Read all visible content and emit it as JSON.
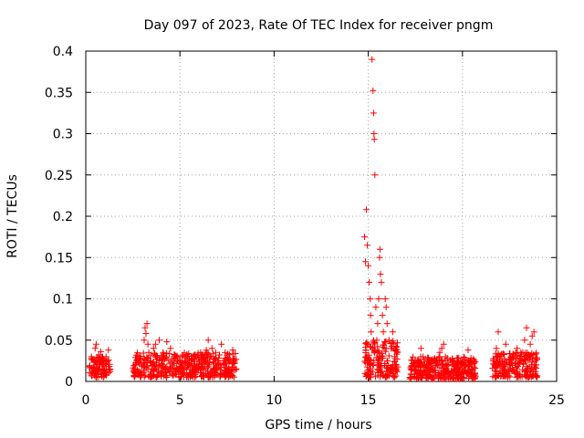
{
  "chart_data": {
    "type": "scatter",
    "title": "Day 097 of 2023, Rate Of TEC Index for receiver pngm",
    "xlabel": "GPS time / hours",
    "ylabel": "ROTI / TECUs",
    "xlim": [
      0,
      25
    ],
    "ylim": [
      0,
      0.4
    ],
    "xticks": [
      0,
      5,
      10,
      15,
      20,
      25
    ],
    "xtick_labels": [
      "0",
      "5",
      "10",
      "15",
      "20",
      "25"
    ],
    "yticks": [
      0,
      0.05,
      0.1,
      0.15,
      0.2,
      0.25,
      0.3,
      0.35,
      0.4
    ],
    "ytick_labels": [
      "0",
      "0.05",
      "0.1",
      "0.15",
      "0.2",
      "0.25",
      "0.3",
      "0.35",
      "0.4"
    ],
    "grid": true,
    "marker": "+",
    "colors": {
      "points": "#ff0000",
      "grid": "#a0a0a0",
      "axis": "#000000"
    },
    "series": [
      {
        "name": "ROTI",
        "points": [
          [
            0.2,
            0.018
          ],
          [
            0.3,
            0.03
          ],
          [
            0.35,
            0.012
          ],
          [
            0.45,
            0.026
          ],
          [
            0.5,
            0.04
          ],
          [
            0.55,
            0.045
          ],
          [
            0.6,
            0.022
          ],
          [
            0.65,
            0.015
          ],
          [
            0.7,
            0.032
          ],
          [
            0.75,
            0.02
          ],
          [
            0.8,
            0.036
          ],
          [
            0.85,
            0.01
          ],
          [
            0.9,
            0.028
          ],
          [
            1.0,
            0.015
          ],
          [
            1.1,
            0.024
          ],
          [
            1.2,
            0.038
          ],
          [
            1.25,
            0.018
          ],
          [
            1.3,
            0.012
          ],
          [
            2.6,
            0.015
          ],
          [
            2.7,
            0.025
          ],
          [
            2.8,
            0.01
          ],
          [
            2.9,
            0.03
          ],
          [
            3.0,
            0.02
          ],
          [
            3.1,
            0.05
          ],
          [
            3.15,
            0.065
          ],
          [
            3.2,
            0.058
          ],
          [
            3.25,
            0.07
          ],
          [
            3.3,
            0.045
          ],
          [
            3.35,
            0.035
          ],
          [
            3.4,
            0.025
          ],
          [
            3.5,
            0.015
          ],
          [
            3.6,
            0.04
          ],
          [
            3.7,
            0.045
          ],
          [
            3.8,
            0.03
          ],
          [
            3.9,
            0.05
          ],
          [
            4.0,
            0.02
          ],
          [
            4.1,
            0.035
          ],
          [
            4.2,
            0.015
          ],
          [
            4.3,
            0.048
          ],
          [
            4.4,
            0.025
          ],
          [
            4.5,
            0.04
          ],
          [
            4.6,
            0.02
          ],
          [
            4.7,
            0.03
          ],
          [
            4.8,
            0.012
          ],
          [
            4.9,
            0.025
          ],
          [
            5.0,
            0.018
          ],
          [
            5.1,
            0.03
          ],
          [
            5.2,
            0.015
          ],
          [
            5.3,
            0.022
          ],
          [
            5.4,
            0.028
          ],
          [
            5.5,
            0.02
          ],
          [
            5.6,
            0.026
          ],
          [
            5.7,
            0.012
          ],
          [
            5.8,
            0.03
          ],
          [
            5.9,
            0.018
          ],
          [
            6.0,
            0.024
          ],
          [
            6.1,
            0.035
          ],
          [
            6.2,
            0.02
          ],
          [
            6.3,
            0.028
          ],
          [
            6.4,
            0.038
          ],
          [
            6.5,
            0.05
          ],
          [
            6.6,
            0.03
          ],
          [
            6.7,
            0.04
          ],
          [
            6.8,
            0.022
          ],
          [
            6.9,
            0.035
          ],
          [
            7.0,
            0.025
          ],
          [
            7.1,
            0.032
          ],
          [
            7.2,
            0.045
          ],
          [
            7.3,
            0.02
          ],
          [
            7.4,
            0.028
          ],
          [
            7.5,
            0.015
          ],
          [
            7.6,
            0.022
          ],
          [
            7.7,
            0.012
          ],
          [
            7.8,
            0.038
          ],
          [
            7.9,
            0.025
          ],
          [
            8.0,
            0.015
          ],
          [
            14.8,
            0.175
          ],
          [
            14.85,
            0.145
          ],
          [
            14.9,
            0.208
          ],
          [
            14.95,
            0.165
          ],
          [
            15.0,
            0.14
          ],
          [
            15.05,
            0.12
          ],
          [
            15.1,
            0.1
          ],
          [
            15.12,
            0.08
          ],
          [
            15.15,
            0.06
          ],
          [
            15.2,
            0.39
          ],
          [
            15.25,
            0.352
          ],
          [
            15.28,
            0.325
          ],
          [
            15.3,
            0.3
          ],
          [
            15.32,
            0.293
          ],
          [
            15.35,
            0.25
          ],
          [
            15.4,
            0.09
          ],
          [
            15.45,
            0.05
          ],
          [
            15.5,
            0.07
          ],
          [
            15.55,
            0.1
          ],
          [
            15.6,
            0.15
          ],
          [
            15.62,
            0.16
          ],
          [
            15.65,
            0.13
          ],
          [
            15.7,
            0.12
          ],
          [
            15.75,
            0.08
          ],
          [
            15.8,
            0.06
          ],
          [
            15.85,
            0.04
          ],
          [
            15.9,
            0.1
          ],
          [
            15.95,
            0.09
          ],
          [
            16.0,
            0.07
          ],
          [
            16.1,
            0.05
          ],
          [
            16.2,
            0.04
          ],
          [
            16.3,
            0.06
          ],
          [
            16.4,
            0.03
          ],
          [
            16.5,
            0.02
          ],
          [
            14.9,
            0.03
          ],
          [
            15.0,
            0.045
          ],
          [
            15.1,
            0.02
          ],
          [
            15.3,
            0.025
          ],
          [
            15.5,
            0.035
          ],
          [
            15.7,
            0.03
          ],
          [
            16.0,
            0.025
          ],
          [
            16.3,
            0.015
          ],
          [
            17.3,
            0.015
          ],
          [
            17.5,
            0.025
          ],
          [
            17.6,
            0.01
          ],
          [
            17.8,
            0.04
          ],
          [
            17.9,
            0.03
          ],
          [
            18.0,
            0.02
          ],
          [
            18.2,
            0.028
          ],
          [
            18.4,
            0.015
          ],
          [
            18.6,
            0.022
          ],
          [
            18.8,
            0.035
          ],
          [
            18.9,
            0.04
          ],
          [
            19.0,
            0.045
          ],
          [
            19.1,
            0.03
          ],
          [
            19.2,
            0.02
          ],
          [
            19.4,
            0.01
          ],
          [
            19.6,
            0.018
          ],
          [
            19.8,
            0.025
          ],
          [
            20.0,
            0.015
          ],
          [
            20.2,
            0.02
          ],
          [
            20.3,
            0.038
          ],
          [
            20.5,
            0.012
          ],
          [
            21.7,
            0.02
          ],
          [
            21.8,
            0.04
          ],
          [
            21.9,
            0.06
          ],
          [
            22.0,
            0.03
          ],
          [
            22.1,
            0.025
          ],
          [
            22.2,
            0.015
          ],
          [
            22.3,
            0.045
          ],
          [
            22.5,
            0.02
          ],
          [
            22.7,
            0.03
          ],
          [
            22.9,
            0.04
          ],
          [
            23.0,
            0.025
          ],
          [
            23.1,
            0.035
          ],
          [
            23.3,
            0.05
          ],
          [
            23.4,
            0.065
          ],
          [
            23.5,
            0.03
          ],
          [
            23.6,
            0.045
          ],
          [
            23.7,
            0.055
          ],
          [
            23.8,
            0.06
          ],
          [
            23.9,
            0.02
          ]
        ],
        "clusters": [
          {
            "x_range": [
              0.2,
              1.3
            ],
            "y_range": [
              0.005,
              0.03
            ],
            "count": 90
          },
          {
            "x_range": [
              2.5,
              8.0
            ],
            "y_range": [
              0.005,
              0.035
            ],
            "count": 420
          },
          {
            "x_range": [
              14.8,
              16.6
            ],
            "y_range": [
              0.005,
              0.05
            ],
            "count": 160
          },
          {
            "x_range": [
              17.2,
              20.7
            ],
            "y_range": [
              0.003,
              0.03
            ],
            "count": 320
          },
          {
            "x_range": [
              21.6,
              24.0
            ],
            "y_range": [
              0.005,
              0.035
            ],
            "count": 200
          }
        ]
      }
    ]
  }
}
